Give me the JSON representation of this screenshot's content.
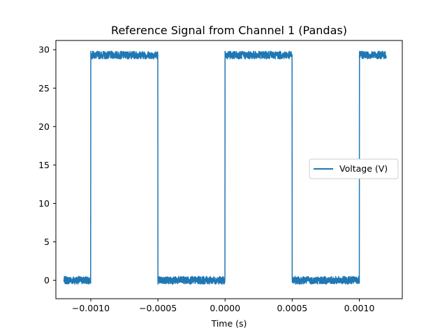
{
  "chart_data": {
    "type": "line",
    "title": "Reference Signal from Channel 1 (Pandas)",
    "xlabel": "Time (s)",
    "ylabel": "",
    "xlim": [
      -0.00126,
      0.00132
    ],
    "ylim": [
      -2.4,
      31.2
    ],
    "x_ticks": [
      -0.001,
      -0.0005,
      0.0,
      0.0005,
      0.001
    ],
    "x_tick_labels": [
      "−0.0010",
      "−0.0005",
      "0.0000",
      "0.0005",
      "0.0010"
    ],
    "y_ticks": [
      0,
      5,
      10,
      15,
      20,
      25,
      30
    ],
    "y_tick_labels": [
      "0",
      "5",
      "10",
      "15",
      "20",
      "25",
      "30"
    ],
    "grid": false,
    "legend_position": "center-right",
    "series": [
      {
        "name": "Voltage (V)",
        "color": "#1f77b4",
        "signal": "square",
        "x_range": [
          -0.0012,
          0.0012
        ],
        "period": 0.001,
        "rising_edges": [
          -0.001,
          0.0,
          0.001
        ],
        "falling_edges": [
          -0.0005,
          0.0005
        ],
        "low_level": 0.0,
        "high_level": 29.3,
        "noise_amplitude": 0.5
      }
    ]
  }
}
